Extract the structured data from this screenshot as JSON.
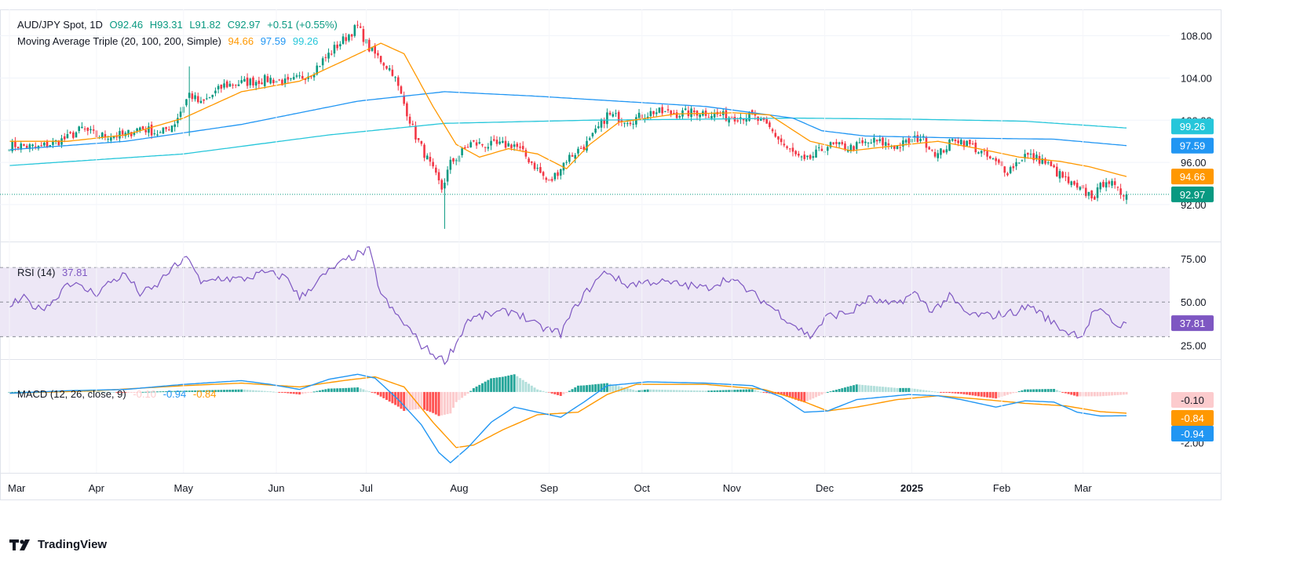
{
  "chart_data": [
    {
      "type": "candlestick",
      "symbol_line": {
        "symbol": "AUD/JPY Spot, 1D",
        "open": "O92.46",
        "high": "H93.31",
        "low": "L91.82",
        "close": "C92.97",
        "change": "+0.51 (+0.55%)"
      },
      "ma_line": {
        "label": "Moving Average Triple (20, 100, 200, Simple)",
        "ma20": "94.66",
        "ma100": "97.59",
        "ma200": "99.26"
      },
      "y_ticks": [
        "108.00",
        "104.00",
        "100.00",
        "96.00",
        "92.00"
      ],
      "y_tick_values": [
        108,
        104,
        100,
        96,
        92
      ],
      "ylim": [
        88.5,
        110.5
      ],
      "x_labels": [
        "Mar",
        "Apr",
        "May",
        "Jun",
        "Jul",
        "Aug",
        "Sep",
        "Oct",
        "Nov",
        "Dec",
        "2025",
        "Feb",
        "Mar"
      ],
      "badges": [
        {
          "text": "99.26",
          "value": 99.26,
          "color": "#26c6da"
        },
        {
          "text": "97.59",
          "value": 97.59,
          "color": "#2196f3"
        },
        {
          "text": "94.66",
          "value": 94.66,
          "color": "#ff9800"
        },
        {
          "text": "92.97",
          "value": 92.97,
          "color": "#089981"
        }
      ],
      "close_series_anchors": [
        [
          0,
          97.7
        ],
        [
          10,
          97.4
        ],
        [
          20,
          98.3
        ],
        [
          25,
          99.2
        ],
        [
          30,
          98.5
        ],
        [
          40,
          98.6
        ],
        [
          45,
          99.3
        ],
        [
          52,
          98.7
        ],
        [
          57,
          99.8
        ],
        [
          62,
          102.5
        ],
        [
          66,
          101.5
        ],
        [
          74,
          103.3
        ],
        [
          82,
          103.6
        ],
        [
          90,
          103.9
        ],
        [
          96,
          103.5
        ],
        [
          104,
          104.5
        ],
        [
          112,
          106.8
        ],
        [
          120,
          108.9
        ],
        [
          124,
          106.8
        ],
        [
          132,
          104.6
        ],
        [
          140,
          98.5
        ],
        [
          144,
          96.3
        ],
        [
          149,
          93.5
        ],
        [
          152,
          95.9
        ],
        [
          159,
          97.8
        ],
        [
          166,
          97.6
        ],
        [
          174,
          97.7
        ],
        [
          180,
          96.0
        ],
        [
          186,
          94.0
        ],
        [
          192,
          96.3
        ],
        [
          200,
          98.0
        ],
        [
          206,
          100.5
        ],
        [
          214,
          100.0
        ],
        [
          222,
          100.8
        ],
        [
          230,
          100.6
        ],
        [
          238,
          100.8
        ],
        [
          248,
          100.3
        ],
        [
          256,
          100.4
        ],
        [
          262,
          99.2
        ],
        [
          268,
          97.3
        ],
        [
          274,
          96.0
        ],
        [
          282,
          97.6
        ],
        [
          290,
          97.4
        ],
        [
          298,
          98.0
        ],
        [
          306,
          97.5
        ],
        [
          314,
          98.4
        ],
        [
          320,
          96.7
        ],
        [
          326,
          98.3
        ],
        [
          332,
          97.5
        ],
        [
          338,
          96.3
        ],
        [
          344,
          95.2
        ],
        [
          350,
          96.7
        ],
        [
          356,
          96.2
        ],
        [
          362,
          94.8
        ],
        [
          368,
          93.4
        ],
        [
          374,
          92.8
        ],
        [
          378,
          94.5
        ],
        [
          382,
          93.2
        ],
        [
          385,
          92.97
        ]
      ],
      "ma20_anchors": [
        [
          0,
          98.0
        ],
        [
          20,
          98.0
        ],
        [
          40,
          98.6
        ],
        [
          60,
          100.2
        ],
        [
          80,
          102.7
        ],
        [
          100,
          103.7
        ],
        [
          115,
          105.6
        ],
        [
          128,
          107.3
        ],
        [
          136,
          106.3
        ],
        [
          146,
          101.3
        ],
        [
          154,
          97.7
        ],
        [
          162,
          96.5
        ],
        [
          172,
          97.3
        ],
        [
          182,
          96.8
        ],
        [
          192,
          95.4
        ],
        [
          200,
          97.7
        ],
        [
          210,
          99.8
        ],
        [
          230,
          100.6
        ],
        [
          250,
          100.7
        ],
        [
          262,
          100.5
        ],
        [
          276,
          98.0
        ],
        [
          290,
          97.1
        ],
        [
          306,
          97.6
        ],
        [
          320,
          98.0
        ],
        [
          334,
          97.3
        ],
        [
          348,
          96.5
        ],
        [
          362,
          96.1
        ],
        [
          372,
          95.6
        ],
        [
          385,
          94.66
        ]
      ],
      "ma100_anchors": [
        [
          0,
          97.2
        ],
        [
          40,
          98.0
        ],
        [
          80,
          99.6
        ],
        [
          120,
          101.8
        ],
        [
          150,
          102.7
        ],
        [
          180,
          102.3
        ],
        [
          240,
          101.3
        ],
        [
          270,
          100.2
        ],
        [
          280,
          99.0
        ],
        [
          295,
          98.5
        ],
        [
          330,
          98.3
        ],
        [
          360,
          98.2
        ],
        [
          385,
          97.59
        ]
      ],
      "ma200_anchors": [
        [
          0,
          95.7
        ],
        [
          60,
          96.8
        ],
        [
          110,
          98.6
        ],
        [
          150,
          99.7
        ],
        [
          200,
          100.0
        ],
        [
          240,
          100.1
        ],
        [
          270,
          100.2
        ],
        [
          310,
          100.1
        ],
        [
          350,
          99.9
        ],
        [
          385,
          99.26
        ]
      ]
    },
    {
      "type": "line",
      "label": "RSI (14)",
      "value": "37.81",
      "y_ticks": [
        "75.00",
        "50.00",
        "25.00"
      ],
      "y_tick_values": [
        75,
        50,
        25
      ],
      "band": [
        30,
        70
      ],
      "ylim": [
        17,
        85
      ],
      "badge": {
        "text": "37.81",
        "value": 37.81,
        "color": "#7e57c2"
      },
      "anchors": [
        [
          0,
          48
        ],
        [
          5,
          52
        ],
        [
          10,
          46
        ],
        [
          15,
          50
        ],
        [
          20,
          62
        ],
        [
          25,
          58
        ],
        [
          30,
          55
        ],
        [
          35,
          62
        ],
        [
          40,
          66
        ],
        [
          45,
          55
        ],
        [
          50,
          58
        ],
        [
          55,
          68
        ],
        [
          62,
          76
        ],
        [
          66,
          60
        ],
        [
          72,
          64
        ],
        [
          80,
          63
        ],
        [
          88,
          67
        ],
        [
          96,
          64
        ],
        [
          100,
          52
        ],
        [
          106,
          62
        ],
        [
          112,
          70
        ],
        [
          118,
          76
        ],
        [
          124,
          80
        ],
        [
          128,
          55
        ],
        [
          132,
          45
        ],
        [
          138,
          34
        ],
        [
          142,
          25
        ],
        [
          146,
          20
        ],
        [
          150,
          16
        ],
        [
          154,
          26
        ],
        [
          158,
          40
        ],
        [
          166,
          43
        ],
        [
          174,
          45
        ],
        [
          182,
          36
        ],
        [
          190,
          32
        ],
        [
          196,
          50
        ],
        [
          202,
          62
        ],
        [
          206,
          68
        ],
        [
          212,
          60
        ],
        [
          222,
          62
        ],
        [
          232,
          60
        ],
        [
          240,
          58
        ],
        [
          248,
          64
        ],
        [
          256,
          55
        ],
        [
          262,
          48
        ],
        [
          268,
          40
        ],
        [
          276,
          30
        ],
        [
          282,
          42
        ],
        [
          290,
          44
        ],
        [
          296,
          52
        ],
        [
          304,
          48
        ],
        [
          312,
          55
        ],
        [
          318,
          45
        ],
        [
          324,
          53
        ],
        [
          330,
          43
        ],
        [
          338,
          42
        ],
        [
          346,
          44
        ],
        [
          352,
          48
        ],
        [
          358,
          40
        ],
        [
          364,
          33
        ],
        [
          370,
          31
        ],
        [
          374,
          46
        ],
        [
          378,
          42
        ],
        [
          382,
          36
        ],
        [
          385,
          37.81
        ]
      ]
    },
    {
      "type": "bar_line",
      "label": "MACD (12, 26, close, 9)",
      "hist_value": "-0.10",
      "macd_value": "-0.94",
      "signal_value": "-0.84",
      "y_ticks": [
        "-2.00"
      ],
      "y_tick_values": [
        -2
      ],
      "ylim": [
        -3.2,
        1.3
      ],
      "badges": [
        {
          "text": "-0.10",
          "value": -0.1,
          "color": "#fccbcd",
          "textColor": "#131722"
        },
        {
          "text": "-0.84",
          "value": -0.84,
          "color": "#ff9800",
          "textColor": "#ffffff"
        },
        {
          "text": "-0.94",
          "value": -0.94,
          "color": "#2196f3",
          "textColor": "#ffffff"
        }
      ],
      "macd_anchors": [
        [
          0,
          -0.05
        ],
        [
          20,
          0.05
        ],
        [
          40,
          0.1
        ],
        [
          60,
          0.3
        ],
        [
          80,
          0.45
        ],
        [
          90,
          0.3
        ],
        [
          100,
          0.1
        ],
        [
          110,
          0.5
        ],
        [
          120,
          0.7
        ],
        [
          126,
          0.55
        ],
        [
          134,
          -0.3
        ],
        [
          142,
          -1.3
        ],
        [
          148,
          -2.4
        ],
        [
          152,
          -2.8
        ],
        [
          158,
          -2.2
        ],
        [
          166,
          -1.2
        ],
        [
          174,
          -0.6
        ],
        [
          182,
          -0.8
        ],
        [
          190,
          -1.0
        ],
        [
          198,
          -0.4
        ],
        [
          206,
          0.25
        ],
        [
          220,
          0.4
        ],
        [
          240,
          0.35
        ],
        [
          256,
          0.25
        ],
        [
          266,
          -0.2
        ],
        [
          274,
          -0.8
        ],
        [
          282,
          -0.75
        ],
        [
          292,
          -0.3
        ],
        [
          310,
          -0.1
        ],
        [
          320,
          -0.15
        ],
        [
          328,
          -0.3
        ],
        [
          340,
          -0.6
        ],
        [
          350,
          -0.35
        ],
        [
          360,
          -0.4
        ],
        [
          368,
          -0.8
        ],
        [
          376,
          -0.95
        ],
        [
          385,
          -0.94
        ]
      ],
      "signal_anchors": [
        [
          0,
          -0.05
        ],
        [
          30,
          0.05
        ],
        [
          60,
          0.25
        ],
        [
          80,
          0.35
        ],
        [
          100,
          0.2
        ],
        [
          115,
          0.45
        ],
        [
          126,
          0.6
        ],
        [
          136,
          0.2
        ],
        [
          146,
          -1.2
        ],
        [
          154,
          -2.2
        ],
        [
          160,
          -2.1
        ],
        [
          170,
          -1.5
        ],
        [
          182,
          -0.9
        ],
        [
          196,
          -0.8
        ],
        [
          206,
          -0.1
        ],
        [
          216,
          0.3
        ],
        [
          240,
          0.3
        ],
        [
          260,
          0.1
        ],
        [
          272,
          -0.3
        ],
        [
          282,
          -0.75
        ],
        [
          292,
          -0.6
        ],
        [
          306,
          -0.3
        ],
        [
          320,
          -0.15
        ],
        [
          336,
          -0.3
        ],
        [
          350,
          -0.45
        ],
        [
          364,
          -0.55
        ],
        [
          376,
          -0.78
        ],
        [
          385,
          -0.84
        ]
      ]
    }
  ],
  "footer": {
    "brand": "TradingView"
  },
  "colors": {
    "up": "#089981",
    "down": "#f23645",
    "ma20": "#ff9800",
    "ma100": "#2196f3",
    "ma200": "#26c6da",
    "rsi": "#7e57c2",
    "rsi_band": "#ede7f6",
    "hist_up": "#26a69a",
    "hist_up_light": "#b2dfdb",
    "hist_down": "#ff5252",
    "hist_down_light": "#fccbcd"
  }
}
